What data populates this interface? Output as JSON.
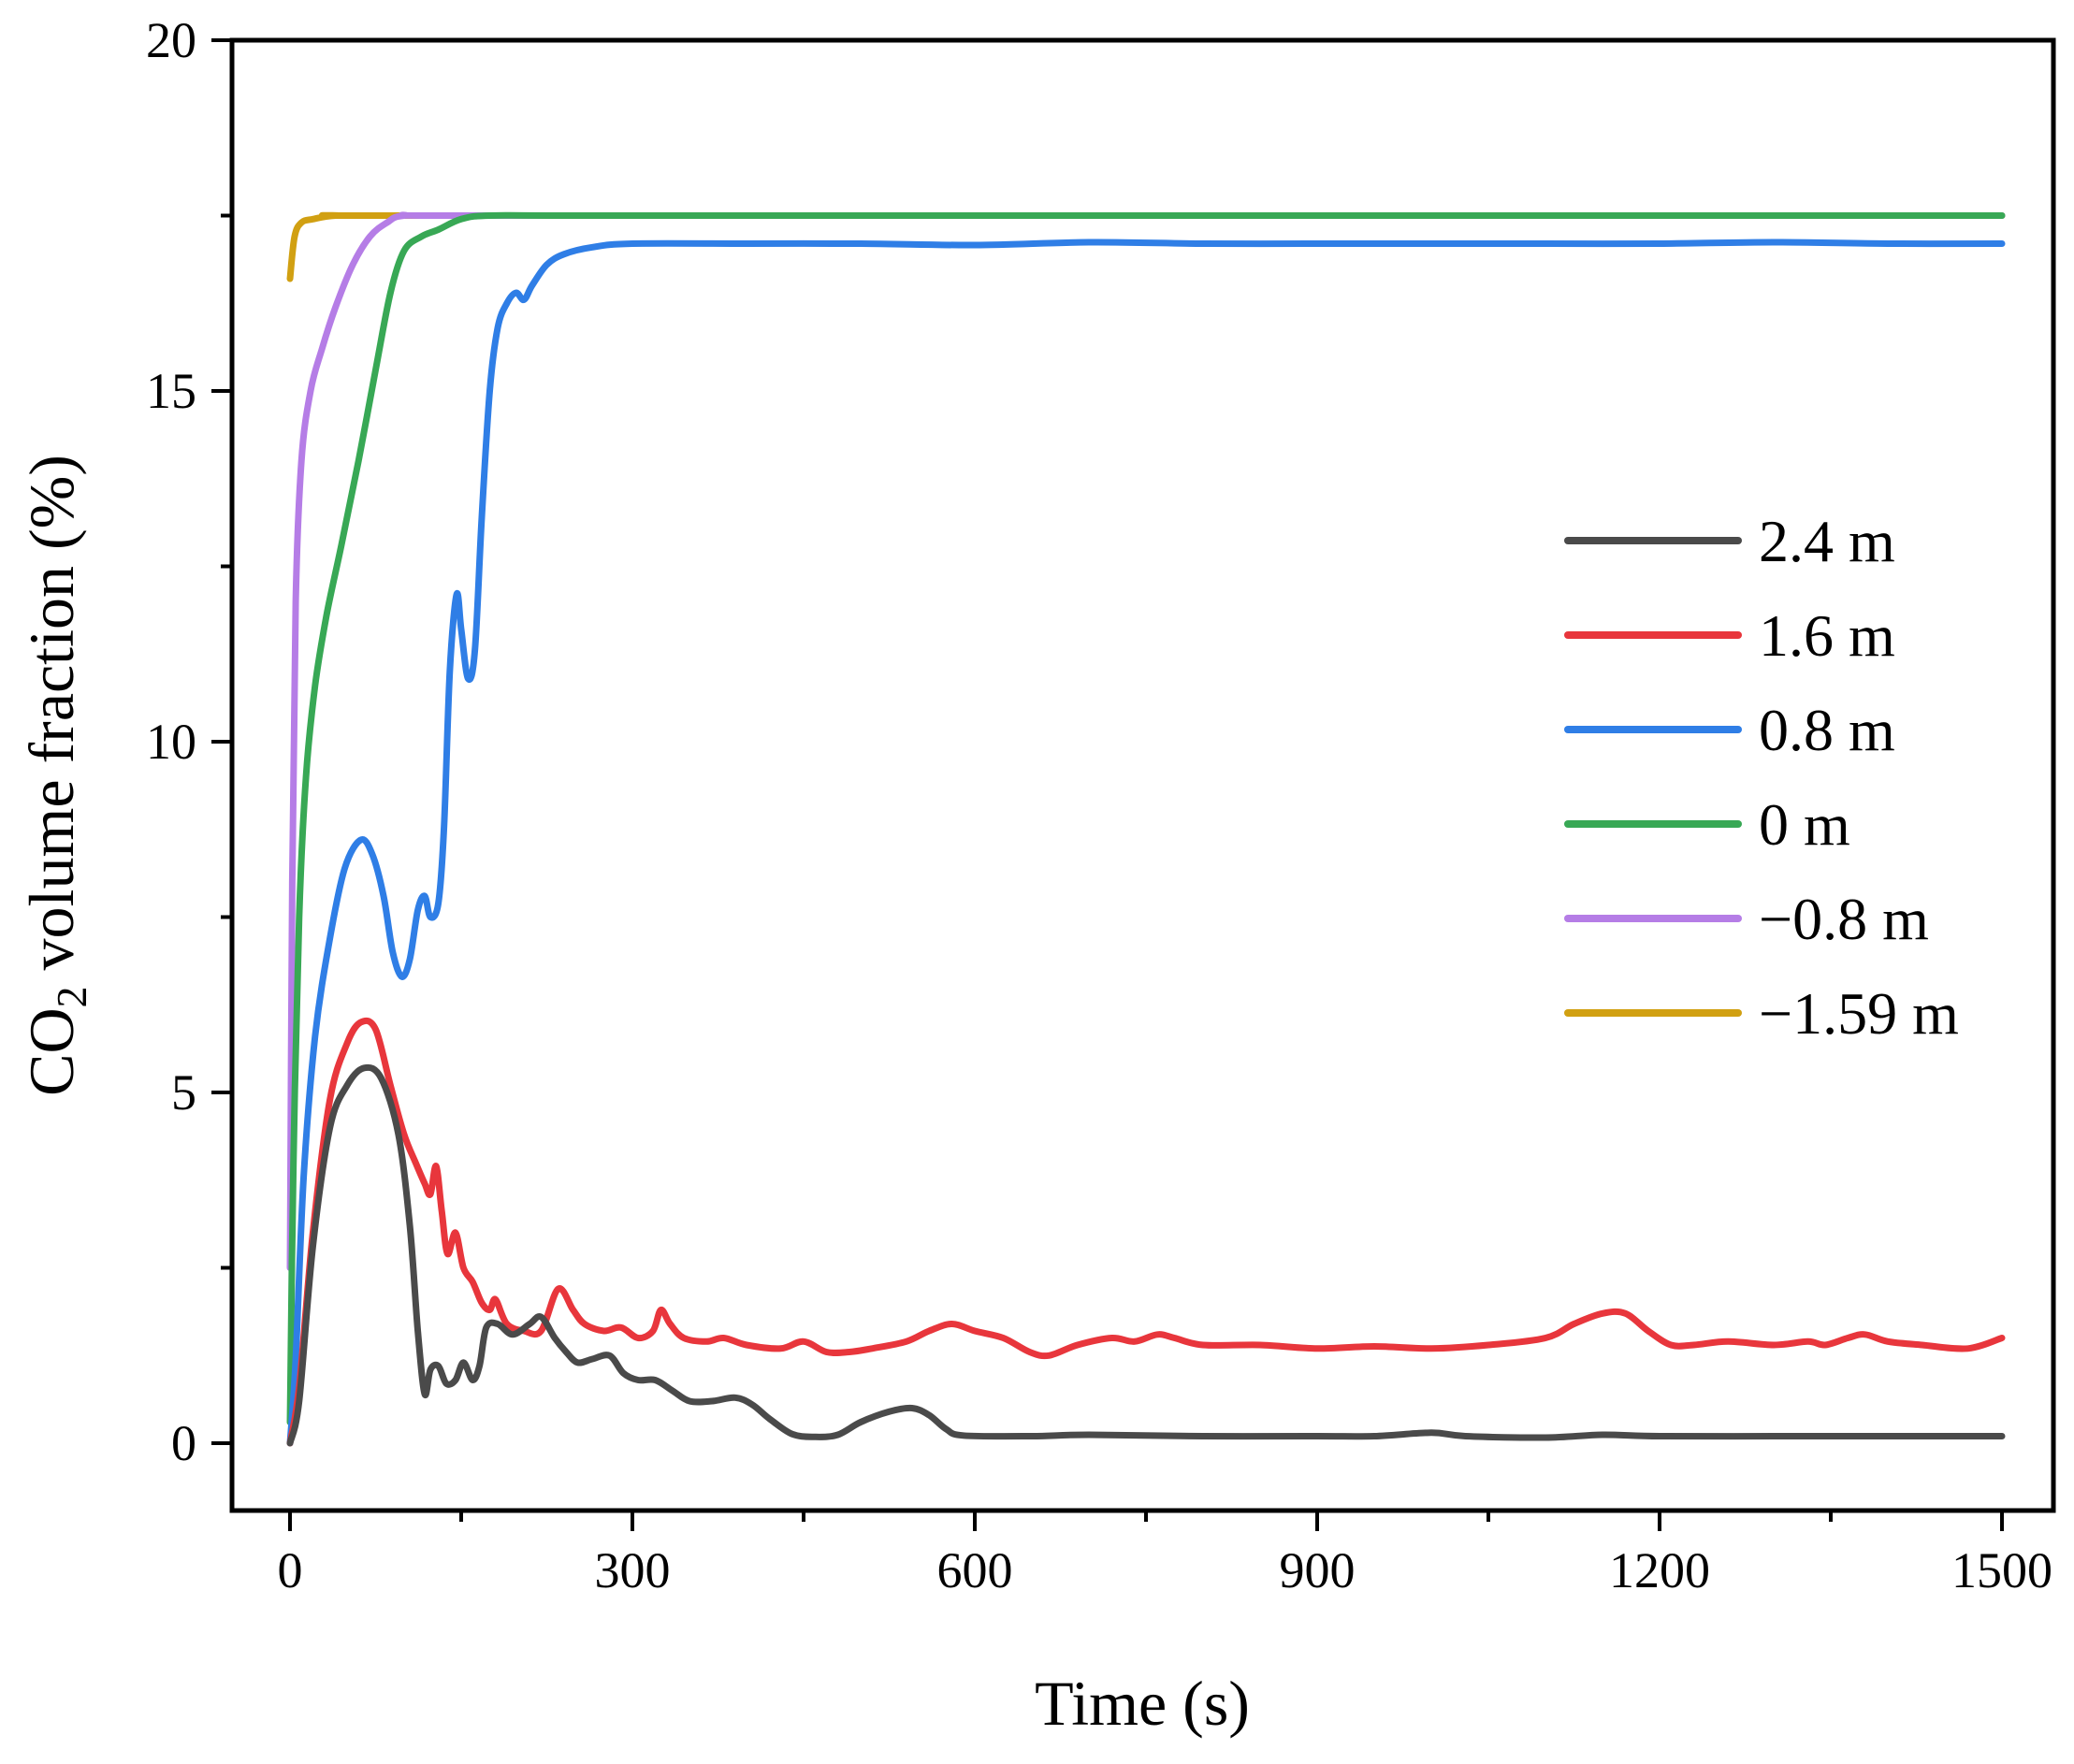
{
  "chart_data": {
    "type": "line",
    "title": "",
    "xlabel": "Time (s)",
    "ylabel_main": "CO",
    "ylabel_sub": "2",
    "ylabel_rest": " volume fraction (%)",
    "xlim": [
      -50,
      1550
    ],
    "ylim": [
      -2,
      20
    ],
    "xticks": [
      0,
      300,
      600,
      900,
      1200,
      1500
    ],
    "xtick_labels": [
      "0",
      "300",
      "600",
      "900",
      "1200",
      "1500"
    ],
    "x_minor_ticks": [
      150,
      450,
      750,
      1050,
      1350
    ],
    "yticks": [
      0,
      5,
      10,
      15,
      20
    ],
    "ytick_labels": [
      "0",
      "5",
      "10",
      "15",
      "20"
    ],
    "y_minor_ticks": [
      2.5,
      7.5,
      12.5,
      17.5
    ],
    "grid": false,
    "legend_position": "right-middle",
    "series": [
      {
        "name": "2.4 m",
        "color": "#4a4a4a",
        "points": [
          [
            0,
            0
          ],
          [
            8,
            0.6
          ],
          [
            20,
            2.8
          ],
          [
            35,
            4.5
          ],
          [
            50,
            5.1
          ],
          [
            65,
            5.35
          ],
          [
            80,
            5.2
          ],
          [
            95,
            4.4
          ],
          [
            105,
            3.1
          ],
          [
            112,
            1.6
          ],
          [
            118,
            0.7
          ],
          [
            123,
            1.05
          ],
          [
            130,
            1.1
          ],
          [
            137,
            0.85
          ],
          [
            145,
            0.9
          ],
          [
            152,
            1.15
          ],
          [
            160,
            0.9
          ],
          [
            166,
            1.1
          ],
          [
            172,
            1.65
          ],
          [
            182,
            1.7
          ],
          [
            195,
            1.55
          ],
          [
            210,
            1.7
          ],
          [
            220,
            1.8
          ],
          [
            232,
            1.5
          ],
          [
            242,
            1.3
          ],
          [
            252,
            1.15
          ],
          [
            265,
            1.2
          ],
          [
            280,
            1.25
          ],
          [
            292,
            1.0
          ],
          [
            305,
            0.9
          ],
          [
            320,
            0.9
          ],
          [
            335,
            0.75
          ],
          [
            350,
            0.6
          ],
          [
            370,
            0.6
          ],
          [
            390,
            0.65
          ],
          [
            405,
            0.55
          ],
          [
            420,
            0.35
          ],
          [
            440,
            0.13
          ],
          [
            460,
            0.09
          ],
          [
            480,
            0.12
          ],
          [
            500,
            0.3
          ],
          [
            525,
            0.45
          ],
          [
            545,
            0.5
          ],
          [
            560,
            0.4
          ],
          [
            575,
            0.2
          ],
          [
            590,
            0.11
          ],
          [
            650,
            0.1
          ],
          [
            700,
            0.12
          ],
          [
            800,
            0.1
          ],
          [
            900,
            0.1
          ],
          [
            950,
            0.1
          ],
          [
            1000,
            0.15
          ],
          [
            1030,
            0.1
          ],
          [
            1100,
            0.08
          ],
          [
            1150,
            0.12
          ],
          [
            1200,
            0.1
          ],
          [
            1300,
            0.1
          ],
          [
            1400,
            0.1
          ],
          [
            1500,
            0.1
          ]
        ]
      },
      {
        "name": "1.6 m",
        "color": "#e8363c",
        "points": [
          [
            0,
            0
          ],
          [
            8,
            0.8
          ],
          [
            20,
            3.0
          ],
          [
            35,
            4.9
          ],
          [
            50,
            5.7
          ],
          [
            62,
            6.0
          ],
          [
            75,
            5.9
          ],
          [
            88,
            5.1
          ],
          [
            100,
            4.4
          ],
          [
            110,
            4.0
          ],
          [
            118,
            3.7
          ],
          [
            123,
            3.55
          ],
          [
            128,
            3.95
          ],
          [
            133,
            3.3
          ],
          [
            138,
            2.7
          ],
          [
            145,
            3.0
          ],
          [
            152,
            2.5
          ],
          [
            160,
            2.3
          ],
          [
            168,
            2.0
          ],
          [
            175,
            1.9
          ],
          [
            180,
            2.05
          ],
          [
            190,
            1.7
          ],
          [
            205,
            1.6
          ],
          [
            220,
            1.6
          ],
          [
            235,
            2.2
          ],
          [
            248,
            1.9
          ],
          [
            258,
            1.7
          ],
          [
            275,
            1.6
          ],
          [
            290,
            1.65
          ],
          [
            305,
            1.5
          ],
          [
            318,
            1.6
          ],
          [
            325,
            1.9
          ],
          [
            333,
            1.7
          ],
          [
            345,
            1.5
          ],
          [
            365,
            1.45
          ],
          [
            380,
            1.5
          ],
          [
            400,
            1.4
          ],
          [
            430,
            1.35
          ],
          [
            450,
            1.45
          ],
          [
            470,
            1.3
          ],
          [
            490,
            1.3
          ],
          [
            510,
            1.35
          ],
          [
            540,
            1.45
          ],
          [
            560,
            1.6
          ],
          [
            580,
            1.7
          ],
          [
            600,
            1.6
          ],
          [
            625,
            1.5
          ],
          [
            648,
            1.3
          ],
          [
            665,
            1.25
          ],
          [
            690,
            1.4
          ],
          [
            720,
            1.5
          ],
          [
            740,
            1.45
          ],
          [
            760,
            1.55
          ],
          [
            775,
            1.5
          ],
          [
            800,
            1.4
          ],
          [
            850,
            1.4
          ],
          [
            900,
            1.35
          ],
          [
            950,
            1.38
          ],
          [
            1000,
            1.35
          ],
          [
            1050,
            1.4
          ],
          [
            1100,
            1.5
          ],
          [
            1125,
            1.7
          ],
          [
            1150,
            1.85
          ],
          [
            1170,
            1.85
          ],
          [
            1190,
            1.6
          ],
          [
            1210,
            1.4
          ],
          [
            1230,
            1.4
          ],
          [
            1260,
            1.45
          ],
          [
            1300,
            1.4
          ],
          [
            1330,
            1.45
          ],
          [
            1345,
            1.4
          ],
          [
            1365,
            1.5
          ],
          [
            1380,
            1.55
          ],
          [
            1400,
            1.45
          ],
          [
            1430,
            1.4
          ],
          [
            1470,
            1.35
          ],
          [
            1500,
            1.5
          ]
        ]
      },
      {
        "name": "0.8 m",
        "color": "#2f7ee6",
        "points": [
          [
            0,
            0
          ],
          [
            5,
            1.2
          ],
          [
            12,
            3.8
          ],
          [
            22,
            5.8
          ],
          [
            35,
            7.2
          ],
          [
            48,
            8.2
          ],
          [
            62,
            8.6
          ],
          [
            72,
            8.4
          ],
          [
            82,
            7.8
          ],
          [
            90,
            7.0
          ],
          [
            98,
            6.65
          ],
          [
            105,
            6.9
          ],
          [
            112,
            7.6
          ],
          [
            118,
            7.8
          ],
          [
            123,
            7.5
          ],
          [
            130,
            7.7
          ],
          [
            135,
            8.8
          ],
          [
            140,
            11.0
          ],
          [
            146,
            12.1
          ],
          [
            150,
            11.6
          ],
          [
            156,
            10.9
          ],
          [
            162,
            11.3
          ],
          [
            168,
            13.2
          ],
          [
            175,
            15.0
          ],
          [
            182,
            15.9
          ],
          [
            190,
            16.25
          ],
          [
            198,
            16.4
          ],
          [
            205,
            16.3
          ],
          [
            212,
            16.5
          ],
          [
            225,
            16.8
          ],
          [
            240,
            16.95
          ],
          [
            265,
            17.05
          ],
          [
            300,
            17.1
          ],
          [
            400,
            17.1
          ],
          [
            500,
            17.1
          ],
          [
            600,
            17.08
          ],
          [
            700,
            17.12
          ],
          [
            800,
            17.1
          ],
          [
            900,
            17.1
          ],
          [
            1000,
            17.1
          ],
          [
            1100,
            17.1
          ],
          [
            1200,
            17.1
          ],
          [
            1300,
            17.12
          ],
          [
            1400,
            17.1
          ],
          [
            1500,
            17.1
          ]
        ]
      },
      {
        "name": "0 m",
        "color": "#38a855",
        "points": [
          [
            0,
            0.3
          ],
          [
            3,
            4.0
          ],
          [
            8,
            7.5
          ],
          [
            14,
            9.5
          ],
          [
            22,
            10.8
          ],
          [
            32,
            11.8
          ],
          [
            45,
            12.8
          ],
          [
            60,
            14.0
          ],
          [
            75,
            15.3
          ],
          [
            88,
            16.4
          ],
          [
            100,
            17.0
          ],
          [
            115,
            17.2
          ],
          [
            130,
            17.3
          ],
          [
            150,
            17.45
          ],
          [
            175,
            17.5
          ],
          [
            250,
            17.5
          ],
          [
            600,
            17.5
          ],
          [
            1000,
            17.5
          ],
          [
            1500,
            17.5
          ]
        ]
      },
      {
        "name": "−0.8 m",
        "color": "#b57de6",
        "points": [
          [
            0,
            2.5
          ],
          [
            2,
            8.0
          ],
          [
            5,
            12.0
          ],
          [
            10,
            14.0
          ],
          [
            18,
            15.0
          ],
          [
            28,
            15.6
          ],
          [
            40,
            16.2
          ],
          [
            55,
            16.8
          ],
          [
            70,
            17.2
          ],
          [
            85,
            17.4
          ],
          [
            100,
            17.5
          ],
          [
            150,
            17.5
          ],
          [
            600,
            17.5
          ],
          [
            1500,
            17.5
          ]
        ]
      },
      {
        "name": "−1.59 m",
        "color": "#d1a012",
        "points": [
          [
            0,
            16.6
          ],
          [
            4,
            17.2
          ],
          [
            10,
            17.4
          ],
          [
            20,
            17.45
          ],
          [
            40,
            17.5
          ],
          [
            80,
            17.5
          ],
          [
            600,
            17.5
          ],
          [
            1500,
            17.5
          ]
        ]
      }
    ]
  }
}
